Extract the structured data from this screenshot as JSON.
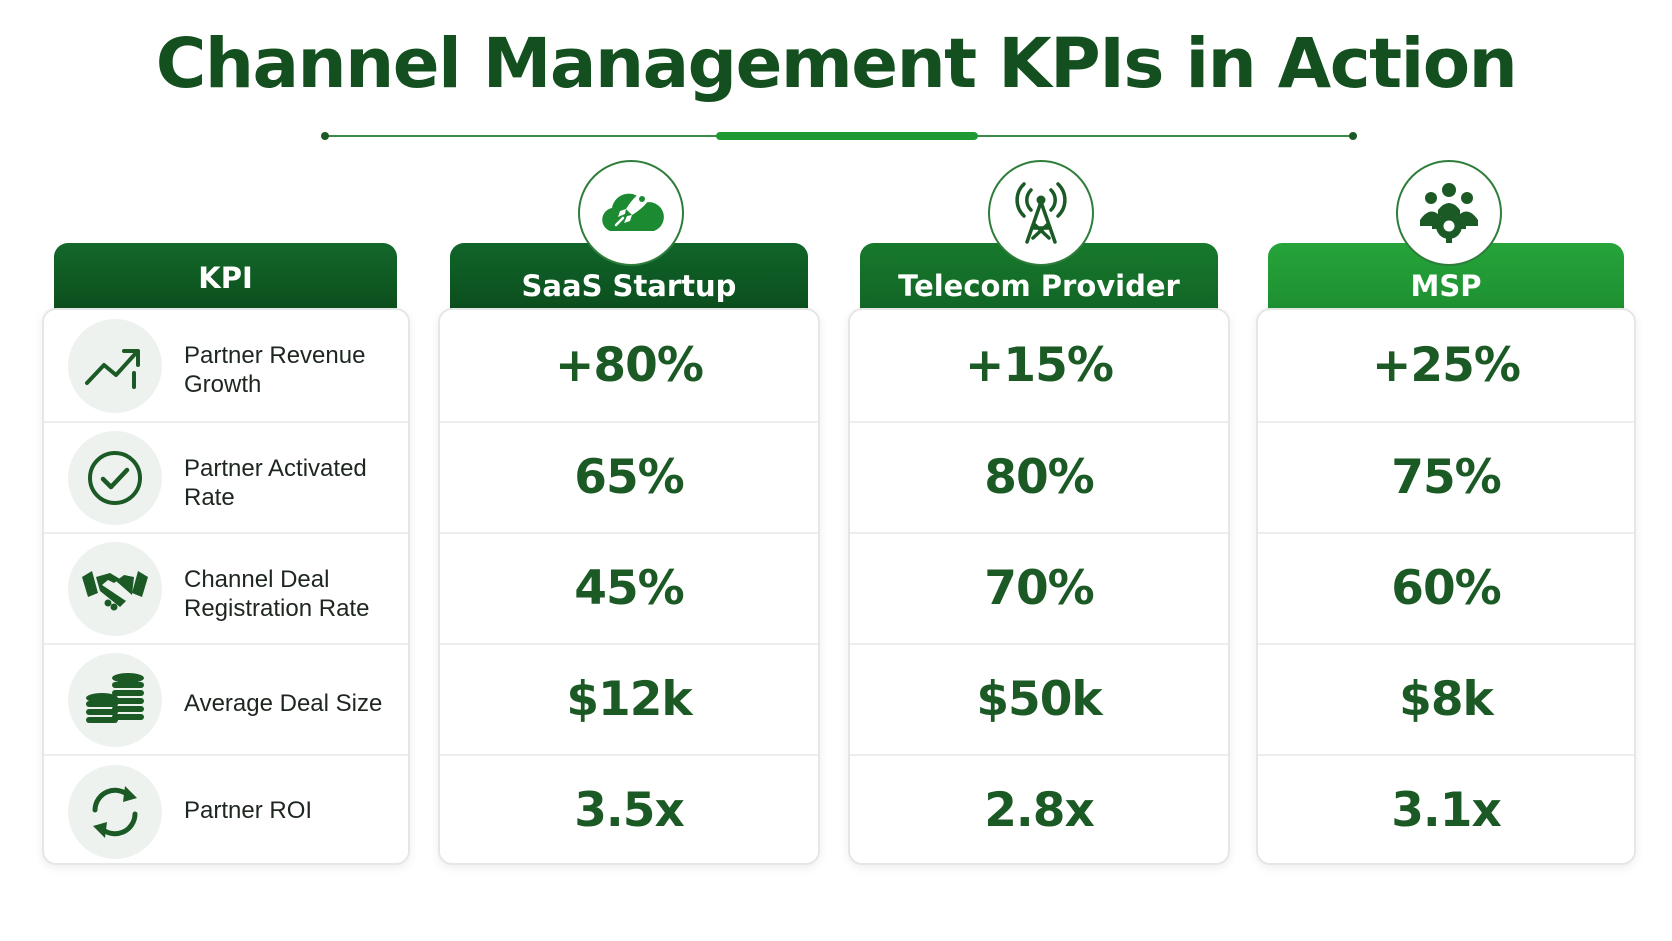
{
  "title": "Channel Management KPIs in Action",
  "header": {
    "kpi_label": "KPI",
    "columns": [
      {
        "label": "SaaS Startup",
        "icon": "rocket-cloud-icon"
      },
      {
        "label": "Telecom Provider",
        "icon": "cell-tower-icon"
      },
      {
        "label": "MSP",
        "icon": "team-gear-icon"
      }
    ]
  },
  "kpis": [
    {
      "label_line1": "Partner Revenue",
      "label_line2": "Growth",
      "icon": "trending-up-icon"
    },
    {
      "label_line1": "Partner Activated",
      "label_line2": "Rate",
      "icon": "check-circle-icon"
    },
    {
      "label_line1": "Channel Deal",
      "label_line2": "Registration Rate",
      "icon": "handshake-icon"
    },
    {
      "label_line1": "Average Deal Size",
      "label_line2": "",
      "icon": "coin-stack-icon"
    },
    {
      "label_line1": "Partner ROI",
      "label_line2": "",
      "icon": "cycle-arrows-icon"
    }
  ],
  "values": {
    "saas": [
      "+80%",
      "65%",
      "45%",
      "$12k",
      "3.5x"
    ],
    "telecom": [
      "+15%",
      "80%",
      "70%",
      "$50k",
      "2.8x"
    ],
    "msp": [
      "+25%",
      "75%",
      "60%",
      "$8k",
      "3.1x"
    ]
  },
  "colors": {
    "title": "#14501f",
    "header_dark": "#0f5a22",
    "header_mid": "#177a2c",
    "header_bright": "#1f9a33",
    "value_text": "#1b5a25",
    "accent": "#1f9a33"
  }
}
